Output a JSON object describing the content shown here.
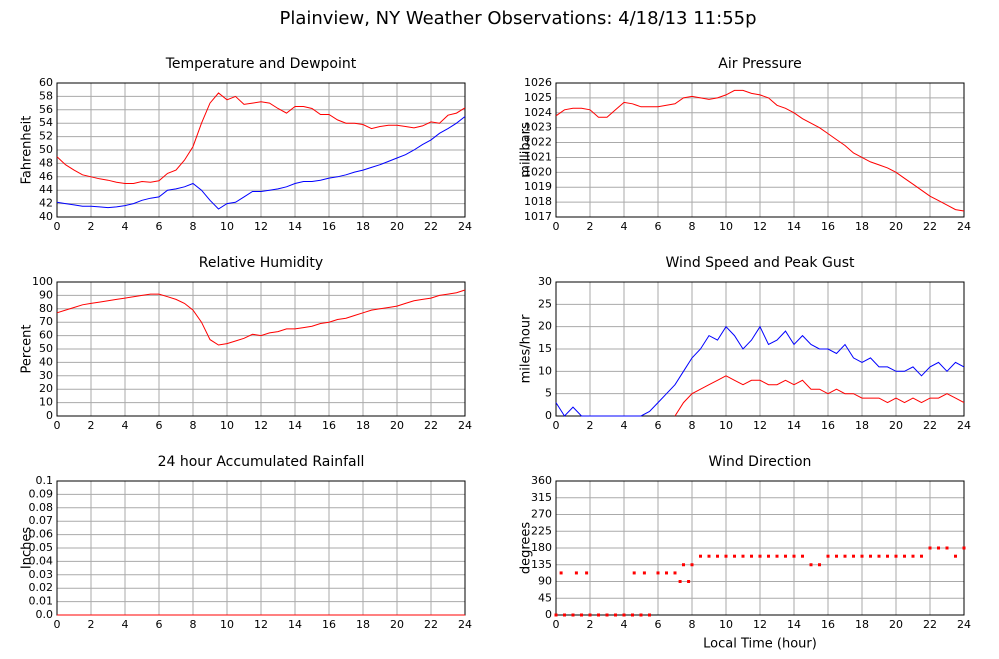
{
  "title": "Plainview, NY Weather Observations: 4/18/13 11:55p",
  "chart_data": [
    {
      "type": "line",
      "title": "Temperature and Dewpoint",
      "ylabel": "Fahrenheit",
      "x": [
        0,
        0.5,
        1,
        1.5,
        2,
        2.5,
        3,
        3.5,
        4,
        4.5,
        5,
        5.5,
        6,
        6.5,
        7,
        7.5,
        8,
        8.5,
        9,
        9.5,
        10,
        10.5,
        11,
        11.5,
        12,
        12.5,
        13,
        13.5,
        14,
        14.5,
        15,
        15.5,
        16,
        16.5,
        17,
        17.5,
        18,
        18.5,
        19,
        19.5,
        20,
        20.5,
        21,
        21.5,
        22,
        22.5,
        23,
        23.5,
        24
      ],
      "series": [
        {
          "color": "#ff0000",
          "values": [
            49,
            47.8,
            47,
            46.3,
            46,
            45.7,
            45.5,
            45.2,
            45,
            45,
            45.3,
            45.2,
            45.4,
            46.5,
            47,
            48.5,
            50.5,
            54,
            57,
            58.5,
            57.5,
            58,
            56.8,
            57,
            57.2,
            57,
            56.2,
            55.5,
            56.5,
            56.5,
            56.2,
            55.3,
            55.3,
            54.5,
            54,
            54,
            53.8,
            53.2,
            53.5,
            53.7,
            53.7,
            53.5,
            53.3,
            53.6,
            54.2,
            54,
            55.2,
            55.5,
            56.3
          ]
        },
        {
          "color": "#0000ff",
          "values": [
            42.2,
            42,
            41.8,
            41.6,
            41.6,
            41.5,
            41.4,
            41.5,
            41.7,
            42,
            42.5,
            42.8,
            43,
            44,
            44.2,
            44.5,
            45,
            44,
            42.5,
            41.2,
            42,
            42.2,
            43,
            43.8,
            43.8,
            44,
            44.2,
            44.5,
            45,
            45.3,
            45.3,
            45.5,
            45.8,
            46,
            46.3,
            46.7,
            47,
            47.4,
            47.8,
            48.3,
            48.8,
            49.3,
            50,
            50.8,
            51.5,
            52.5,
            53.2,
            54,
            55
          ]
        }
      ],
      "xlim": [
        0,
        24
      ],
      "xticks": [
        0,
        2,
        4,
        6,
        8,
        10,
        12,
        14,
        16,
        18,
        20,
        22,
        24
      ],
      "ylim": [
        40,
        60
      ],
      "yticks": [
        40,
        42,
        44,
        46,
        48,
        50,
        52,
        54,
        56,
        58,
        60
      ],
      "grid": true
    },
    {
      "type": "line",
      "title": "Air Pressure",
      "ylabel": "millibars",
      "x": [
        0,
        0.5,
        1,
        1.5,
        2,
        2.5,
        3,
        3.5,
        4,
        4.5,
        5,
        5.5,
        6,
        6.5,
        7,
        7.5,
        8,
        8.5,
        9,
        9.5,
        10,
        10.5,
        11,
        11.5,
        12,
        12.5,
        13,
        13.5,
        14,
        14.5,
        15,
        15.5,
        16,
        16.5,
        17,
        17.5,
        18,
        18.5,
        19,
        19.5,
        20,
        20.5,
        21,
        21.5,
        22,
        22.5,
        23,
        23.5,
        24
      ],
      "series": [
        {
          "color": "#ff0000",
          "values": [
            1023.8,
            1024.2,
            1024.3,
            1024.3,
            1024.2,
            1023.7,
            1023.7,
            1024.2,
            1024.7,
            1024.6,
            1024.4,
            1024.4,
            1024.4,
            1024.5,
            1024.6,
            1025.0,
            1025.1,
            1025.0,
            1024.9,
            1025.0,
            1025.2,
            1025.5,
            1025.5,
            1025.3,
            1025.2,
            1025.0,
            1024.5,
            1024.3,
            1024.0,
            1023.6,
            1023.3,
            1023.0,
            1022.6,
            1022.2,
            1021.8,
            1021.3,
            1021.0,
            1020.7,
            1020.5,
            1020.3,
            1020.0,
            1019.6,
            1019.2,
            1018.8,
            1018.4,
            1018.1,
            1017.8,
            1017.5,
            1017.4
          ]
        }
      ],
      "xlim": [
        0,
        24
      ],
      "xticks": [
        0,
        2,
        4,
        6,
        8,
        10,
        12,
        14,
        16,
        18,
        20,
        22,
        24
      ],
      "ylim": [
        1017,
        1026
      ],
      "yticks": [
        1017,
        1018,
        1019,
        1020,
        1021,
        1022,
        1023,
        1024,
        1025,
        1026
      ],
      "grid": true
    },
    {
      "type": "line",
      "title": "Relative Humidity",
      "ylabel": "Percent",
      "x": [
        0,
        0.5,
        1,
        1.5,
        2,
        2.5,
        3,
        3.5,
        4,
        4.5,
        5,
        5.5,
        6,
        6.5,
        7,
        7.5,
        8,
        8.5,
        9,
        9.5,
        10,
        10.5,
        11,
        11.5,
        12,
        12.5,
        13,
        13.5,
        14,
        14.5,
        15,
        15.5,
        16,
        16.5,
        17,
        17.5,
        18,
        18.5,
        19,
        19.5,
        20,
        20.5,
        21,
        21.5,
        22,
        22.5,
        23,
        23.5,
        24
      ],
      "series": [
        {
          "color": "#ff0000",
          "values": [
            77,
            79,
            81,
            83,
            84,
            85,
            86,
            87,
            88,
            89,
            90,
            91,
            91,
            89,
            87,
            84,
            79,
            70,
            57,
            53,
            54,
            56,
            58,
            61,
            60,
            62,
            63,
            65,
            65,
            66,
            67,
            69,
            70,
            72,
            73,
            75,
            77,
            79,
            80,
            81,
            82,
            84,
            86,
            87,
            88,
            90,
            91,
            92,
            94
          ]
        }
      ],
      "xlim": [
        0,
        24
      ],
      "xticks": [
        0,
        2,
        4,
        6,
        8,
        10,
        12,
        14,
        16,
        18,
        20,
        22,
        24
      ],
      "ylim": [
        0,
        100
      ],
      "yticks": [
        0,
        10,
        20,
        30,
        40,
        50,
        60,
        70,
        80,
        90,
        100
      ],
      "grid": true
    },
    {
      "type": "line",
      "title": "Wind Speed and Peak Gust",
      "ylabel": "miles/hour",
      "x": [
        0,
        0.5,
        1,
        1.5,
        2,
        2.5,
        3,
        3.5,
        4,
        4.5,
        5,
        5.5,
        6,
        6.5,
        7,
        7.5,
        8,
        8.5,
        9,
        9.5,
        10,
        10.5,
        11,
        11.5,
        12,
        12.5,
        13,
        13.5,
        14,
        14.5,
        15,
        15.5,
        16,
        16.5,
        17,
        17.5,
        18,
        18.5,
        19,
        19.5,
        20,
        20.5,
        21,
        21.5,
        22,
        22.5,
        23,
        23.5,
        24
      ],
      "series": [
        {
          "color": "#0000ff",
          "values": [
            3,
            0,
            2,
            0,
            0,
            0,
            0,
            0,
            0,
            0,
            0,
            1,
            3,
            5,
            7,
            10,
            13,
            15,
            18,
            17,
            20,
            18,
            15,
            17,
            20,
            16,
            17,
            19,
            16,
            18,
            16,
            15,
            15,
            14,
            16,
            13,
            12,
            13,
            11,
            11,
            10,
            10,
            11,
            9,
            11,
            12,
            10,
            12,
            11
          ]
        },
        {
          "color": "#ff0000",
          "values": [
            null,
            null,
            null,
            null,
            null,
            null,
            null,
            null,
            null,
            null,
            null,
            null,
            null,
            null,
            0,
            3,
            5,
            6,
            7,
            8,
            9,
            8,
            7,
            8,
            8,
            7,
            7,
            8,
            7,
            8,
            6,
            6,
            5,
            6,
            5,
            5,
            4,
            4,
            4,
            3,
            4,
            3,
            4,
            3,
            4,
            4,
            5,
            4,
            3
          ]
        }
      ],
      "xlim": [
        0,
        24
      ],
      "xticks": [
        0,
        2,
        4,
        6,
        8,
        10,
        12,
        14,
        16,
        18,
        20,
        22,
        24
      ],
      "ylim": [
        0,
        30
      ],
      "yticks": [
        0,
        5,
        10,
        15,
        20,
        25,
        30
      ],
      "grid": true
    },
    {
      "type": "line",
      "title": "24 hour Accumulated Rainfall",
      "ylabel": "Inches",
      "x": [
        0,
        24
      ],
      "series": [
        {
          "color": "#ff0000",
          "values": [
            0,
            0
          ]
        }
      ],
      "xlim": [
        0,
        24
      ],
      "xticks": [
        0,
        2,
        4,
        6,
        8,
        10,
        12,
        14,
        16,
        18,
        20,
        22,
        24
      ],
      "ylim": [
        0,
        0.1
      ],
      "yticks": [
        {
          "value": 0,
          "label": "0.0"
        },
        0.01,
        0.02,
        0.03,
        0.04,
        0.05,
        0.06,
        0.07,
        0.08,
        0.09,
        0.1
      ],
      "grid": true
    },
    {
      "type": "scatter",
      "title": "Wind Direction",
      "ylabel": "degrees",
      "xlabel": "Local Time (hour)",
      "x": [
        0,
        0.3,
        0.5,
        1,
        1.2,
        1.5,
        1.8,
        2,
        2.5,
        3,
        3.5,
        4,
        4.5,
        4.6,
        5,
        5.2,
        5.5,
        6,
        6.5,
        7,
        7.3,
        7.5,
        7.8,
        8,
        8.5,
        9,
        9.5,
        10,
        10.5,
        11,
        11.5,
        12,
        12.5,
        13,
        13.5,
        14,
        14.5,
        15,
        15.5,
        16,
        16.5,
        17,
        17.5,
        18,
        18.5,
        19,
        19.5,
        20,
        20.5,
        21,
        21.5,
        22,
        22.5,
        23,
        23.5,
        24
      ],
      "series": [
        {
          "color": "#ff0000",
          "values": [
            0,
            113,
            0,
            0,
            113,
            0,
            113,
            0,
            0,
            0,
            0,
            0,
            0,
            113,
            0,
            113,
            0,
            113,
            113,
            113,
            90,
            135,
            90,
            135,
            158,
            158,
            158,
            158,
            158,
            158,
            158,
            158,
            158,
            158,
            158,
            158,
            158,
            135,
            135,
            158,
            158,
            158,
            158,
            158,
            158,
            158,
            158,
            158,
            158,
            158,
            158,
            180,
            180,
            180,
            158,
            180
          ]
        }
      ],
      "xlim": [
        0,
        24
      ],
      "xticks": [
        0,
        2,
        4,
        6,
        8,
        10,
        12,
        14,
        16,
        18,
        20,
        22,
        24
      ],
      "ylim": [
        0,
        360
      ],
      "yticks": [
        0,
        45,
        90,
        135,
        180,
        225,
        270,
        315,
        360
      ],
      "grid": true
    }
  ]
}
